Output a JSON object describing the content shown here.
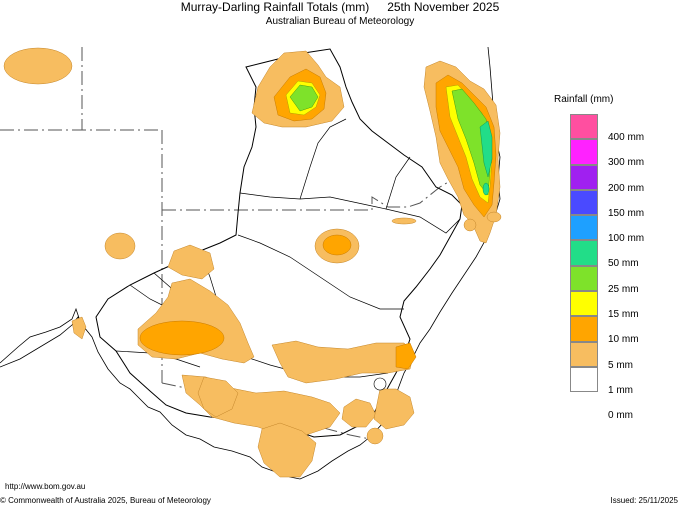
{
  "header": {
    "title": "Murray-Darling Rainfall Totals (mm)",
    "date": "25th November 2025",
    "subtitle": "Australian Bureau of Meteorology"
  },
  "legend": {
    "title": "Rainfall (mm)",
    "items": [
      {
        "label": "400 mm",
        "color": "#ff4fa0"
      },
      {
        "label": "300 mm",
        "color": "#ff22ff"
      },
      {
        "label": "200 mm",
        "color": "#a020f0"
      },
      {
        "label": "150 mm",
        "color": "#4a4aff"
      },
      {
        "label": "100 mm",
        "color": "#1ea0ff"
      },
      {
        "label": "50 mm",
        "color": "#22dd88"
      },
      {
        "label": "25 mm",
        "color": "#7ee22a"
      },
      {
        "label": "15 mm",
        "color": "#ffff00"
      },
      {
        "label": "10 mm",
        "color": "#ffa500"
      },
      {
        "label": "5 mm",
        "color": "#f7bd60"
      },
      {
        "label": "1 mm",
        "color": "#ffffff"
      },
      {
        "label": "0 mm",
        "color": null
      }
    ]
  },
  "footer": {
    "url": "http://www.bom.gov.au",
    "copyright": "© Commonwealth of Australia 2025, Bureau of Meteorology",
    "issued": "Issued: 25/11/2025"
  }
}
